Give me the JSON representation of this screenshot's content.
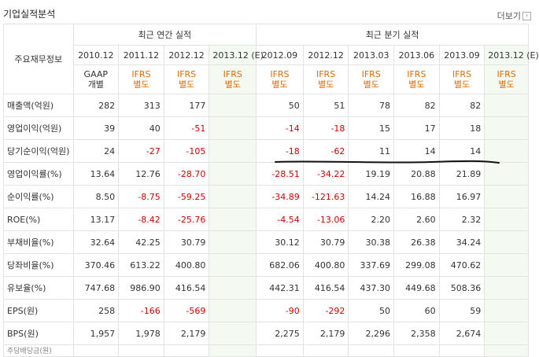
{
  "header": {
    "title": "기업실적분석",
    "more": "더보기"
  },
  "table": {
    "corner": "주요재무정보",
    "groups": {
      "annual": "최근 연간 실적",
      "quarterly": "최근 분기 실적"
    },
    "periods": [
      "2010.12",
      "2011.12",
      "2012.12",
      "2013.12 (E)",
      "2012.09",
      "2012.12",
      "2013.03",
      "2013.06",
      "2013.09",
      "2013.12 (E)"
    ],
    "standards": [
      [
        "GAAP",
        "개별"
      ],
      [
        "IFRS",
        "별도"
      ],
      [
        "IFRS",
        "별도"
      ],
      [
        "IFRS",
        "별도"
      ],
      [
        "IFRS",
        "별도"
      ],
      [
        "IFRS",
        "별도"
      ],
      [
        "IFRS",
        "별도"
      ],
      [
        "IFRS",
        "별도"
      ],
      [
        "IFRS",
        "별도"
      ],
      [
        "IFRS",
        "별도"
      ]
    ],
    "rows": [
      {
        "label": "매출액(억원)",
        "values": [
          "282",
          "313",
          "177",
          "",
          "50",
          "51",
          "78",
          "82",
          "82",
          ""
        ]
      },
      {
        "label": "영업이익(억원)",
        "values": [
          "39",
          "40",
          "-51",
          "",
          "-14",
          "-18",
          "15",
          "17",
          "18",
          ""
        ]
      },
      {
        "label": "당기순이익(억원)",
        "values": [
          "24",
          "-27",
          "-105",
          "",
          "-18",
          "-62",
          "11",
          "14",
          "14",
          ""
        ]
      },
      {
        "label": "영업이익률(%)",
        "values": [
          "13.64",
          "12.76",
          "-28.70",
          "",
          "-28.51",
          "-34.22",
          "19.19",
          "20.88",
          "21.89",
          ""
        ]
      },
      {
        "label": "순이익률(%)",
        "values": [
          "8.50",
          "-8.75",
          "-59.25",
          "",
          "-34.89",
          "-121.63",
          "14.24",
          "16.88",
          "16.97",
          ""
        ]
      },
      {
        "label": "ROE(%)",
        "values": [
          "13.17",
          "-8.42",
          "-25.76",
          "",
          "-4.54",
          "-13.06",
          "2.20",
          "2.60",
          "2.32",
          ""
        ]
      },
      {
        "label": "부채비율(%)",
        "values": [
          "32.64",
          "42.25",
          "30.79",
          "",
          "30.12",
          "30.79",
          "30.38",
          "26.38",
          "34.24",
          ""
        ]
      },
      {
        "label": "당좌비율(%)",
        "values": [
          "370.46",
          "613.22",
          "400.80",
          "",
          "682.06",
          "400.80",
          "337.69",
          "299.08",
          "470.62",
          ""
        ]
      },
      {
        "label": "유보율(%)",
        "values": [
          "747.68",
          "986.90",
          "416.54",
          "",
          "442.31",
          "416.54",
          "437.30",
          "449.68",
          "508.36",
          ""
        ]
      },
      {
        "label": "EPS(원)",
        "values": [
          "258",
          "-166",
          "-569",
          "",
          "-90",
          "-292",
          "50",
          "60",
          "59",
          ""
        ]
      },
      {
        "label": "BPS(원)",
        "values": [
          "1,957",
          "1,978",
          "2,179",
          "",
          "2,275",
          "2,179",
          "2,296",
          "2,358",
          "2,674",
          ""
        ]
      },
      {
        "label": "주당배당금(원)",
        "values": [
          "",
          "",
          "",
          "",
          "",
          "",
          "",
          "",
          "",
          ""
        ]
      }
    ]
  },
  "colors": {
    "negative": "#d20000",
    "ifrs": "#e06b00",
    "estimate_bg": "#f4f9f2"
  },
  "annotation_icon": "hand-drawn-underline"
}
